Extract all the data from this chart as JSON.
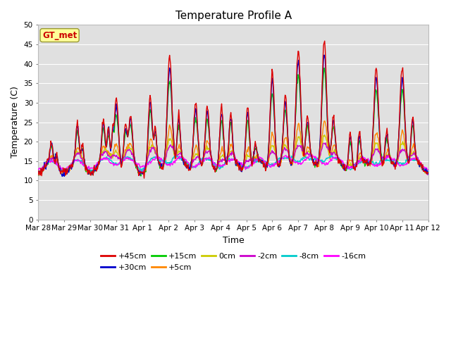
{
  "title": "Temperature Profile A",
  "xlabel": "Time",
  "ylabel": "Temperature (C)",
  "ylim": [
    0,
    50
  ],
  "yticks": [
    0,
    5,
    10,
    15,
    20,
    25,
    30,
    35,
    40,
    45,
    50
  ],
  "plot_bg_color": "#e0e0e0",
  "fig_bg_color": "#ffffff",
  "grid_color": "#ffffff",
  "legend_label": "GT_met",
  "series_colors": {
    "+45cm": "#dd0000",
    "+30cm": "#0000cc",
    "+15cm": "#00cc00",
    "+5cm": "#ff8800",
    "0cm": "#cccc00",
    "-2cm": "#cc00cc",
    "-8cm": "#00cccc",
    "-16cm": "#ff00ff"
  },
  "date_labels": [
    "Mar 28",
    "Mar 29",
    "Mar 30",
    "Mar 31",
    "Apr 1",
    "Apr 2",
    "Apr 3",
    "Apr 4",
    "Apr 5",
    "Apr 6",
    "Apr 7",
    "Apr 8",
    "Apr 9",
    "Apr 10",
    "Apr 11",
    "Apr 12"
  ],
  "n_days": 15,
  "lw": 1.0
}
